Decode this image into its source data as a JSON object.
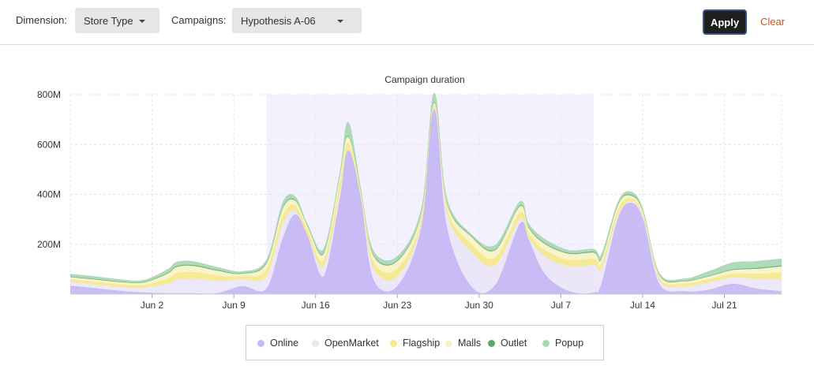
{
  "toolbar": {
    "dimension_label": "Dimension:",
    "dimension_value": "Store Type",
    "campaigns_label": "Campaigns:",
    "campaigns_value": "Hypothesis A-06",
    "apply_label": "Apply",
    "clear_label": "Clear"
  },
  "colors": {
    "Online": "#c6b7f5",
    "OpenMarket": "#eae6f9",
    "Flagship": "#f5e98a",
    "Malls": "#f8f3c4",
    "Outlet": "#5fa56a",
    "Popup": "#a9d8b4",
    "campaign_band": "#f3f1fd",
    "apply_bg": "#1f1f1f",
    "clear_text": "#d24f1e"
  },
  "chart_data": {
    "type": "area",
    "stacked": true,
    "title": "",
    "band_label": "Campaign duration",
    "band_start_day": 24,
    "band_end_day": 64,
    "y_ticks": [
      200,
      400,
      600,
      800
    ],
    "y_tick_labels": [
      "200M",
      "400M",
      "600M",
      "800M"
    ],
    "ylim": [
      0,
      800
    ],
    "y_unit": "M",
    "x_tick_days": [
      10,
      20,
      30,
      40,
      50,
      60,
      70,
      80
    ],
    "x_tick_labels": [
      "Jun 2",
      "Jun 9",
      "Jun 16",
      "Jun 23",
      "Jun 30",
      "Jul 7",
      "Jul 14",
      "Jul 21"
    ],
    "xlim": [
      0,
      87
    ],
    "x_unit": "days",
    "legend": [
      "Online",
      "OpenMarket",
      "Flagship",
      "Malls",
      "Outlet",
      "Popup"
    ],
    "legend_position": "bottom",
    "grid": true,
    "x": [
      0,
      3,
      6,
      9,
      12,
      13,
      15,
      18,
      21,
      24,
      26,
      27.5,
      29,
      31,
      33,
      34,
      35.5,
      37,
      40,
      43,
      44.5,
      46,
      49,
      52,
      55,
      56,
      58,
      61,
      64,
      65,
      67,
      68.5,
      70,
      72,
      75,
      78,
      81,
      84,
      87
    ],
    "series": [
      {
        "name": "Online",
        "values": [
          32,
          22,
          12,
          5,
          2,
          2,
          2,
          2,
          30,
          20,
          220,
          318,
          230,
          70,
          380,
          574,
          380,
          60,
          30,
          270,
          740,
          270,
          30,
          35,
          280,
          220,
          80,
          10,
          5,
          40,
          300,
          365,
          300,
          40,
          10,
          15,
          40,
          20,
          10
        ]
      },
      {
        "name": "OpenMarket",
        "values": [
          15,
          15,
          15,
          20,
          40,
          55,
          60,
          50,
          30,
          50,
          60,
          15,
          0,
          40,
          25,
          5,
          0,
          45,
          40,
          15,
          5,
          55,
          140,
          80,
          20,
          5,
          70,
          100,
          110,
          60,
          15,
          5,
          10,
          15,
          20,
          30,
          25,
          40,
          50
        ]
      },
      {
        "name": "Flagship",
        "values": [
          10,
          10,
          10,
          10,
          20,
          25,
          25,
          20,
          10,
          25,
          30,
          20,
          20,
          25,
          35,
          25,
          15,
          25,
          30,
          20,
          10,
          20,
          30,
          30,
          25,
          20,
          25,
          25,
          25,
          20,
          20,
          12,
          10,
          10,
          10,
          12,
          15,
          20,
          25
        ]
      },
      {
        "name": "Malls",
        "values": [
          10,
          10,
          10,
          10,
          20,
          25,
          25,
          20,
          10,
          25,
          30,
          20,
          20,
          25,
          30,
          25,
          15,
          25,
          30,
          20,
          10,
          20,
          30,
          30,
          25,
          20,
          25,
          25,
          25,
          20,
          20,
          12,
          10,
          10,
          10,
          12,
          15,
          20,
          25
        ]
      },
      {
        "name": "Outlet",
        "values": [
          2,
          2,
          2,
          2,
          3,
          3,
          3,
          3,
          2,
          3,
          3,
          3,
          3,
          3,
          3,
          3,
          3,
          3,
          3,
          3,
          3,
          3,
          3,
          3,
          3,
          3,
          3,
          3,
          3,
          3,
          3,
          3,
          2,
          2,
          2,
          2,
          2,
          3,
          3
        ]
      },
      {
        "name": "Popup",
        "values": [
          11,
          11,
          9,
          8,
          15,
          18,
          15,
          12,
          8,
          12,
          23,
          14,
          5,
          17,
          14,
          55,
          10,
          18,
          17,
          19,
          37,
          19,
          7,
          18,
          17,
          15,
          17,
          12,
          12,
          17,
          10,
          13,
          10,
          8,
          8,
          18,
          28,
          28,
          28
        ]
      }
    ]
  }
}
